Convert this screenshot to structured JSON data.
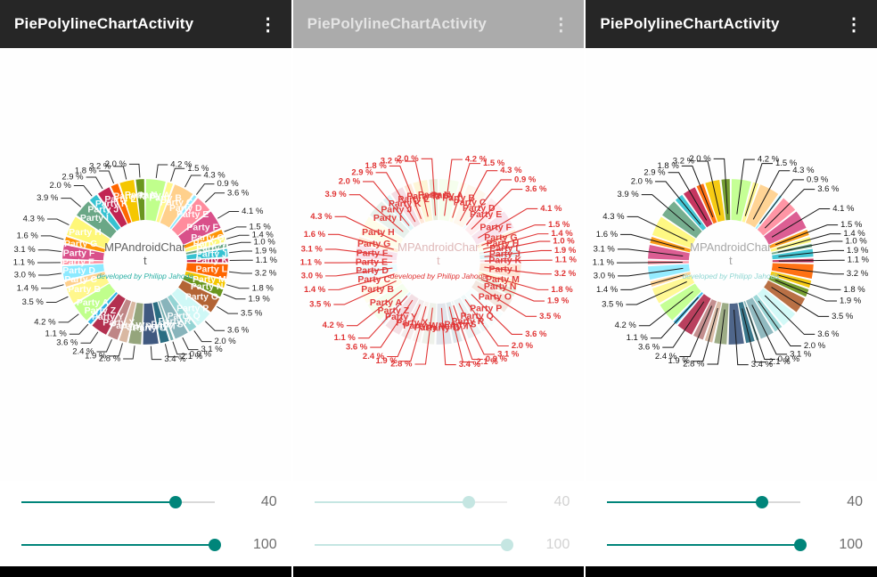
{
  "app": {
    "title": "PiePolylineChartActivity",
    "overflow_icon": "⋮"
  },
  "panels": [
    {
      "variant": "normal",
      "slider_x_value": "40",
      "slider_y_value": "100"
    },
    {
      "variant": "faded",
      "slider_x_value": "40",
      "slider_y_value": "100"
    },
    {
      "variant": "outlined",
      "slider_x_value": "40",
      "slider_y_value": "100"
    }
  ],
  "colors": {
    "accent": "#00857a",
    "toolbar_bg": "#262626",
    "toolbar_bg_faded": "#ababab",
    "value_line": "#2b2b2b",
    "value_label": "#1d1d1d",
    "faded_red": "#e03535",
    "center_text": "#636363",
    "center_subtext": "#2bb0a5"
  },
  "chart_data": {
    "type": "pie",
    "title": "MPAndroidChart",
    "center_text": "MPAndroidChart",
    "center_subtext": "developed by Philipp Jahoda",
    "unit": "%",
    "labels": [
      "Party A",
      "Party B",
      "Party C",
      "Party D",
      "Party E",
      "Party F",
      "Party G",
      "Party H",
      "Party I",
      "Party J",
      "Party K",
      "Party L",
      "Party M",
      "Party N",
      "Party O",
      "Party P",
      "Party Q",
      "Party R",
      "Party S",
      "Party T",
      "Party U",
      "Party V",
      "Party W",
      "Party X",
      "Party Y",
      "Party Z",
      "Party A",
      "Party B",
      "Party C",
      "Party D",
      "Party E",
      "Party F",
      "Party G",
      "Party H",
      "Party I",
      "Party J",
      "Party K",
      "Party L",
      "Party M",
      "Party N"
    ],
    "values": [
      4.2,
      1.5,
      4.3,
      0.9,
      3.6,
      4.1,
      1.5,
      1.4,
      1.0,
      1.9,
      1.1,
      3.2,
      1.8,
      1.9,
      3.5,
      3.6,
      2.0,
      3.1,
      0.9,
      2.1,
      3.4,
      2.8,
      1.9,
      2.4,
      3.6,
      1.1,
      4.2,
      3.5,
      1.4,
      3.0,
      1.1,
      3.1,
      1.6,
      4.3,
      3.9,
      2.0,
      2.9,
      1.8,
      3.2,
      2.0
    ],
    "palette": [
      "#c0ff8c",
      "#fff78c",
      "#ffd08c",
      "#8ceaff",
      "#ff8c9d",
      "#d9508a",
      "#fe9507",
      "#fef778",
      "#6aa786",
      "#35c2d1",
      "#c12552",
      "#ff6600",
      "#f5c700",
      "#6a961f",
      "#b36435",
      "#cff8f6",
      "#94d4d4",
      "#88b4bb",
      "#76aeaf",
      "#2a6d82",
      "#405980",
      "#95a57c",
      "#d9b8a2",
      "#bf8686",
      "#b33050",
      "#33b5e5"
    ],
    "slider_x_label_value": 40,
    "slider_y_label_value": 100
  }
}
